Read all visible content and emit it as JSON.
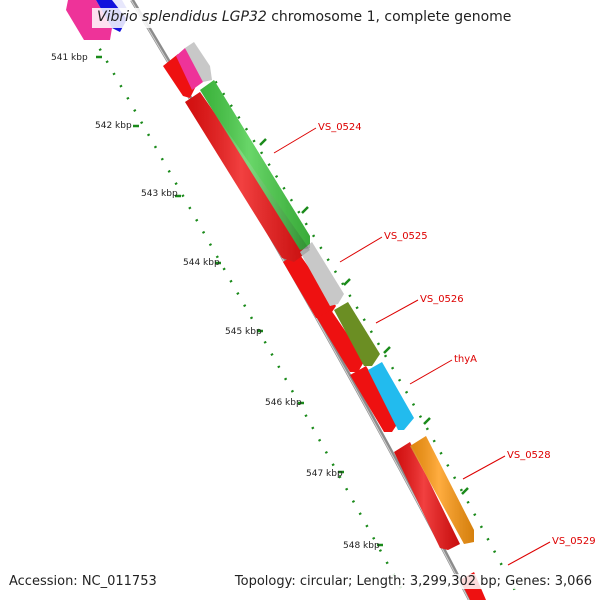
{
  "title": {
    "species": "Vibrio splendidus LGP32",
    "rest": " chromosome 1, complete genome"
  },
  "footer": {
    "accession": "Accession: NC_011753",
    "topology": "Topology: circular; Length: 3,299,302 bp; Genes: 3,066"
  },
  "ruler_ticks": [
    "541 kbp",
    "542 kbp",
    "543 kbp",
    "544 kbp",
    "545 kbp",
    "546 kbp",
    "547 kbp",
    "548 kbp"
  ],
  "gene_labels": [
    "VS_0524",
    "VS_0525",
    "VS_0526",
    "thyA",
    "VS_0528",
    "VS_0529"
  ],
  "colors": {
    "backbone": "#8c8c8c",
    "cds_red": "#ee1111",
    "label_red": "#dd0000",
    "ruler_green": "#1a8a1a",
    "gene_magenta": "#ee3399",
    "gene_blue": "#1111dd",
    "gene_grey": "#c8c8c8",
    "gene_green": "#44cc44",
    "gene_olive": "#6b8e23",
    "gene_cyan": "#22bbee",
    "gene_orange": "#ff9911"
  }
}
